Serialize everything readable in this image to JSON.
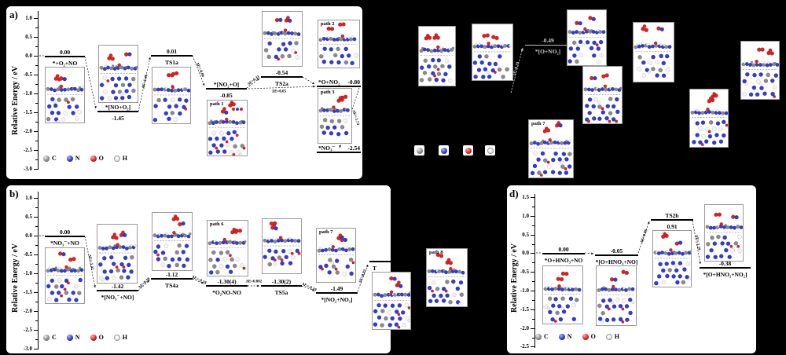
{
  "figure": {
    "colors": {
      "background": "#000000",
      "panel": "#ffffff",
      "carbon": "#8a8a8a",
      "nitrogen": "#2f3bd3",
      "oxygen": "#dd2020",
      "hydrogen": "#f5f5f5",
      "annotation_gray": "#c8c8c8"
    },
    "panels": {
      "a": {
        "label": "a)",
        "ylabel": "Relative Energy / eV",
        "yticks": [
          "1.0",
          "0.5",
          "0.0",
          "-0.5",
          "-1.0",
          "-1.5",
          "-2.0",
          "-2.5",
          "-3.0"
        ],
        "levels": [
          {
            "name": "*+O₂+NO",
            "value": "0.00"
          },
          {
            "name": "*[NO+O₂]",
            "value": "-1.45"
          },
          {
            "name": "TS1a",
            "value": "0.01"
          },
          {
            "name": "*[NO₂+O]",
            "value": "-0.85"
          },
          {
            "name": "TS2a",
            "value": "-0.54"
          },
          {
            "name": "*O+NO₂",
            "value": "-0.80"
          },
          {
            "name": "*NO₃⁻",
            "value": "-2.54"
          }
        ],
        "deltas": [
          "ΔE=1.46",
          "ΔE=-0.86",
          "ΔE=0.31",
          "ΔE=0.05",
          "ΔE=-1.74"
        ],
        "paths": [
          "path 1",
          "path 2",
          "path 3"
        ],
        "legend": [
          "C",
          "N",
          "O",
          "H"
        ]
      },
      "b": {
        "label": "b)",
        "ylabel": "Relative Energy / eV",
        "yticks": [
          "1.0",
          "0.5",
          "0.0",
          "-0.5",
          "-1.0",
          "-1.5",
          "-2.0",
          "-2.5",
          "-3.0"
        ],
        "levels": [
          {
            "name": "*NO₃⁻+NO",
            "value": "0.00"
          },
          {
            "name": "*[NO₃⁻+NO]",
            "value": "-1.42"
          },
          {
            "name": "TS4a",
            "value": "-1.12"
          },
          {
            "name": "*O₂NO-NO",
            "value": "-1.30(4)"
          },
          {
            "name": "TS5a",
            "value": "-1.30(2)"
          },
          {
            "name": "*[NO₂+NO₂]",
            "value": "-1.49"
          },
          {
            "name": "T",
            "value": ""
          }
        ],
        "deltas": [
          "ΔE=-1.42",
          "ΔE=0.30",
          "ΔE=-0.18",
          "ΔE=0.002",
          "ΔE=-0.19",
          "ΔE=0.83"
        ],
        "paths": [
          "path 6",
          "path 7",
          "path 8"
        ],
        "legend": [
          "C",
          "N",
          "O",
          "H"
        ]
      },
      "c": {
        "levels": [
          {
            "name": "*[O+NO₂]",
            "value": "-0.49"
          }
        ],
        "deltas": [
          "ΔE=0.19"
        ],
        "paths": [
          "path 7"
        ]
      },
      "d": {
        "label": "d)",
        "ylabel": "Relative Energy / eV",
        "yticks": [
          "1.5",
          "1.0",
          "0.5",
          "0.0",
          "-0.5",
          "-1.0",
          "-1.5",
          "-2.0",
          "-2.5"
        ],
        "levels": [
          {
            "name": "*O+HNO₃+NO",
            "value": "0.00"
          },
          {
            "name": "*[O+HNO₃+NO]",
            "value": "-0.05"
          },
          {
            "name": "TS2b",
            "value": "0.91"
          },
          {
            "name": "*[O+HNO₂+NO₂]",
            "value": "-0.38"
          }
        ],
        "deltas": [
          "ΔE=0.96",
          "ΔE=-1.29"
        ],
        "legend": [
          "C",
          "N",
          "O",
          "H"
        ]
      }
    }
  },
  "chart_data": [
    {
      "panel": "a",
      "type": "line",
      "ylabel": "Relative Energy / eV",
      "ylim": [
        -3.0,
        1.0
      ],
      "categories": [
        "*+O₂+NO",
        "*[NO+O₂]",
        "TS1a",
        "*[NO₂+O]",
        "TS2a",
        "*O+NO₂",
        "*NO₃⁻"
      ],
      "values": [
        0.0,
        -1.45,
        0.01,
        -0.85,
        -0.54,
        -0.8,
        -2.54
      ],
      "annotations": [
        "ΔE=1.46",
        "ΔE=-0.86",
        "ΔE=0.31",
        "ΔE=0.05",
        "ΔE=-1.74"
      ],
      "branches": [
        "path 1",
        "path 2",
        "path 3"
      ]
    },
    {
      "panel": "b",
      "type": "line",
      "ylabel": "Relative Energy / eV",
      "ylim": [
        -3.0,
        1.0
      ],
      "categories": [
        "*NO₃⁻+NO",
        "*[NO₃⁻+NO]",
        "TS4a",
        "*O₂NO-NO",
        "TS5a",
        "*[NO₂+NO₂]"
      ],
      "values": [
        0.0,
        -1.42,
        -1.12,
        -1.3,
        -1.3,
        -1.49
      ],
      "value_labels": [
        "0.00",
        "-1.42",
        "-1.12",
        "-1.30(4)",
        "-1.30(2)",
        "-1.49"
      ],
      "annotations": [
        "ΔE=-1.42",
        "ΔE=0.30",
        "ΔE=-0.18",
        "ΔE=0.002",
        "ΔE=-0.19",
        "ΔE=0.83"
      ],
      "branches": [
        "path 6",
        "path 7",
        "path 8"
      ]
    },
    {
      "panel": "c",
      "type": "line",
      "categories": [
        "*[O+NO₂]"
      ],
      "values": [
        -0.49
      ],
      "annotations": [
        "ΔE=0.19"
      ],
      "branches": [
        "path 7"
      ]
    },
    {
      "panel": "d",
      "type": "line",
      "ylabel": "Relative Energy / eV",
      "ylim": [
        -2.5,
        1.5
      ],
      "categories": [
        "*O+HNO₃+NO",
        "*[O+HNO₃+NO]",
        "TS2b",
        "*[O+HNO₂+NO₂]"
      ],
      "values": [
        0.0,
        -0.05,
        0.91,
        -0.38
      ],
      "annotations": [
        "ΔE=0.96",
        "ΔE=-1.29"
      ]
    }
  ]
}
